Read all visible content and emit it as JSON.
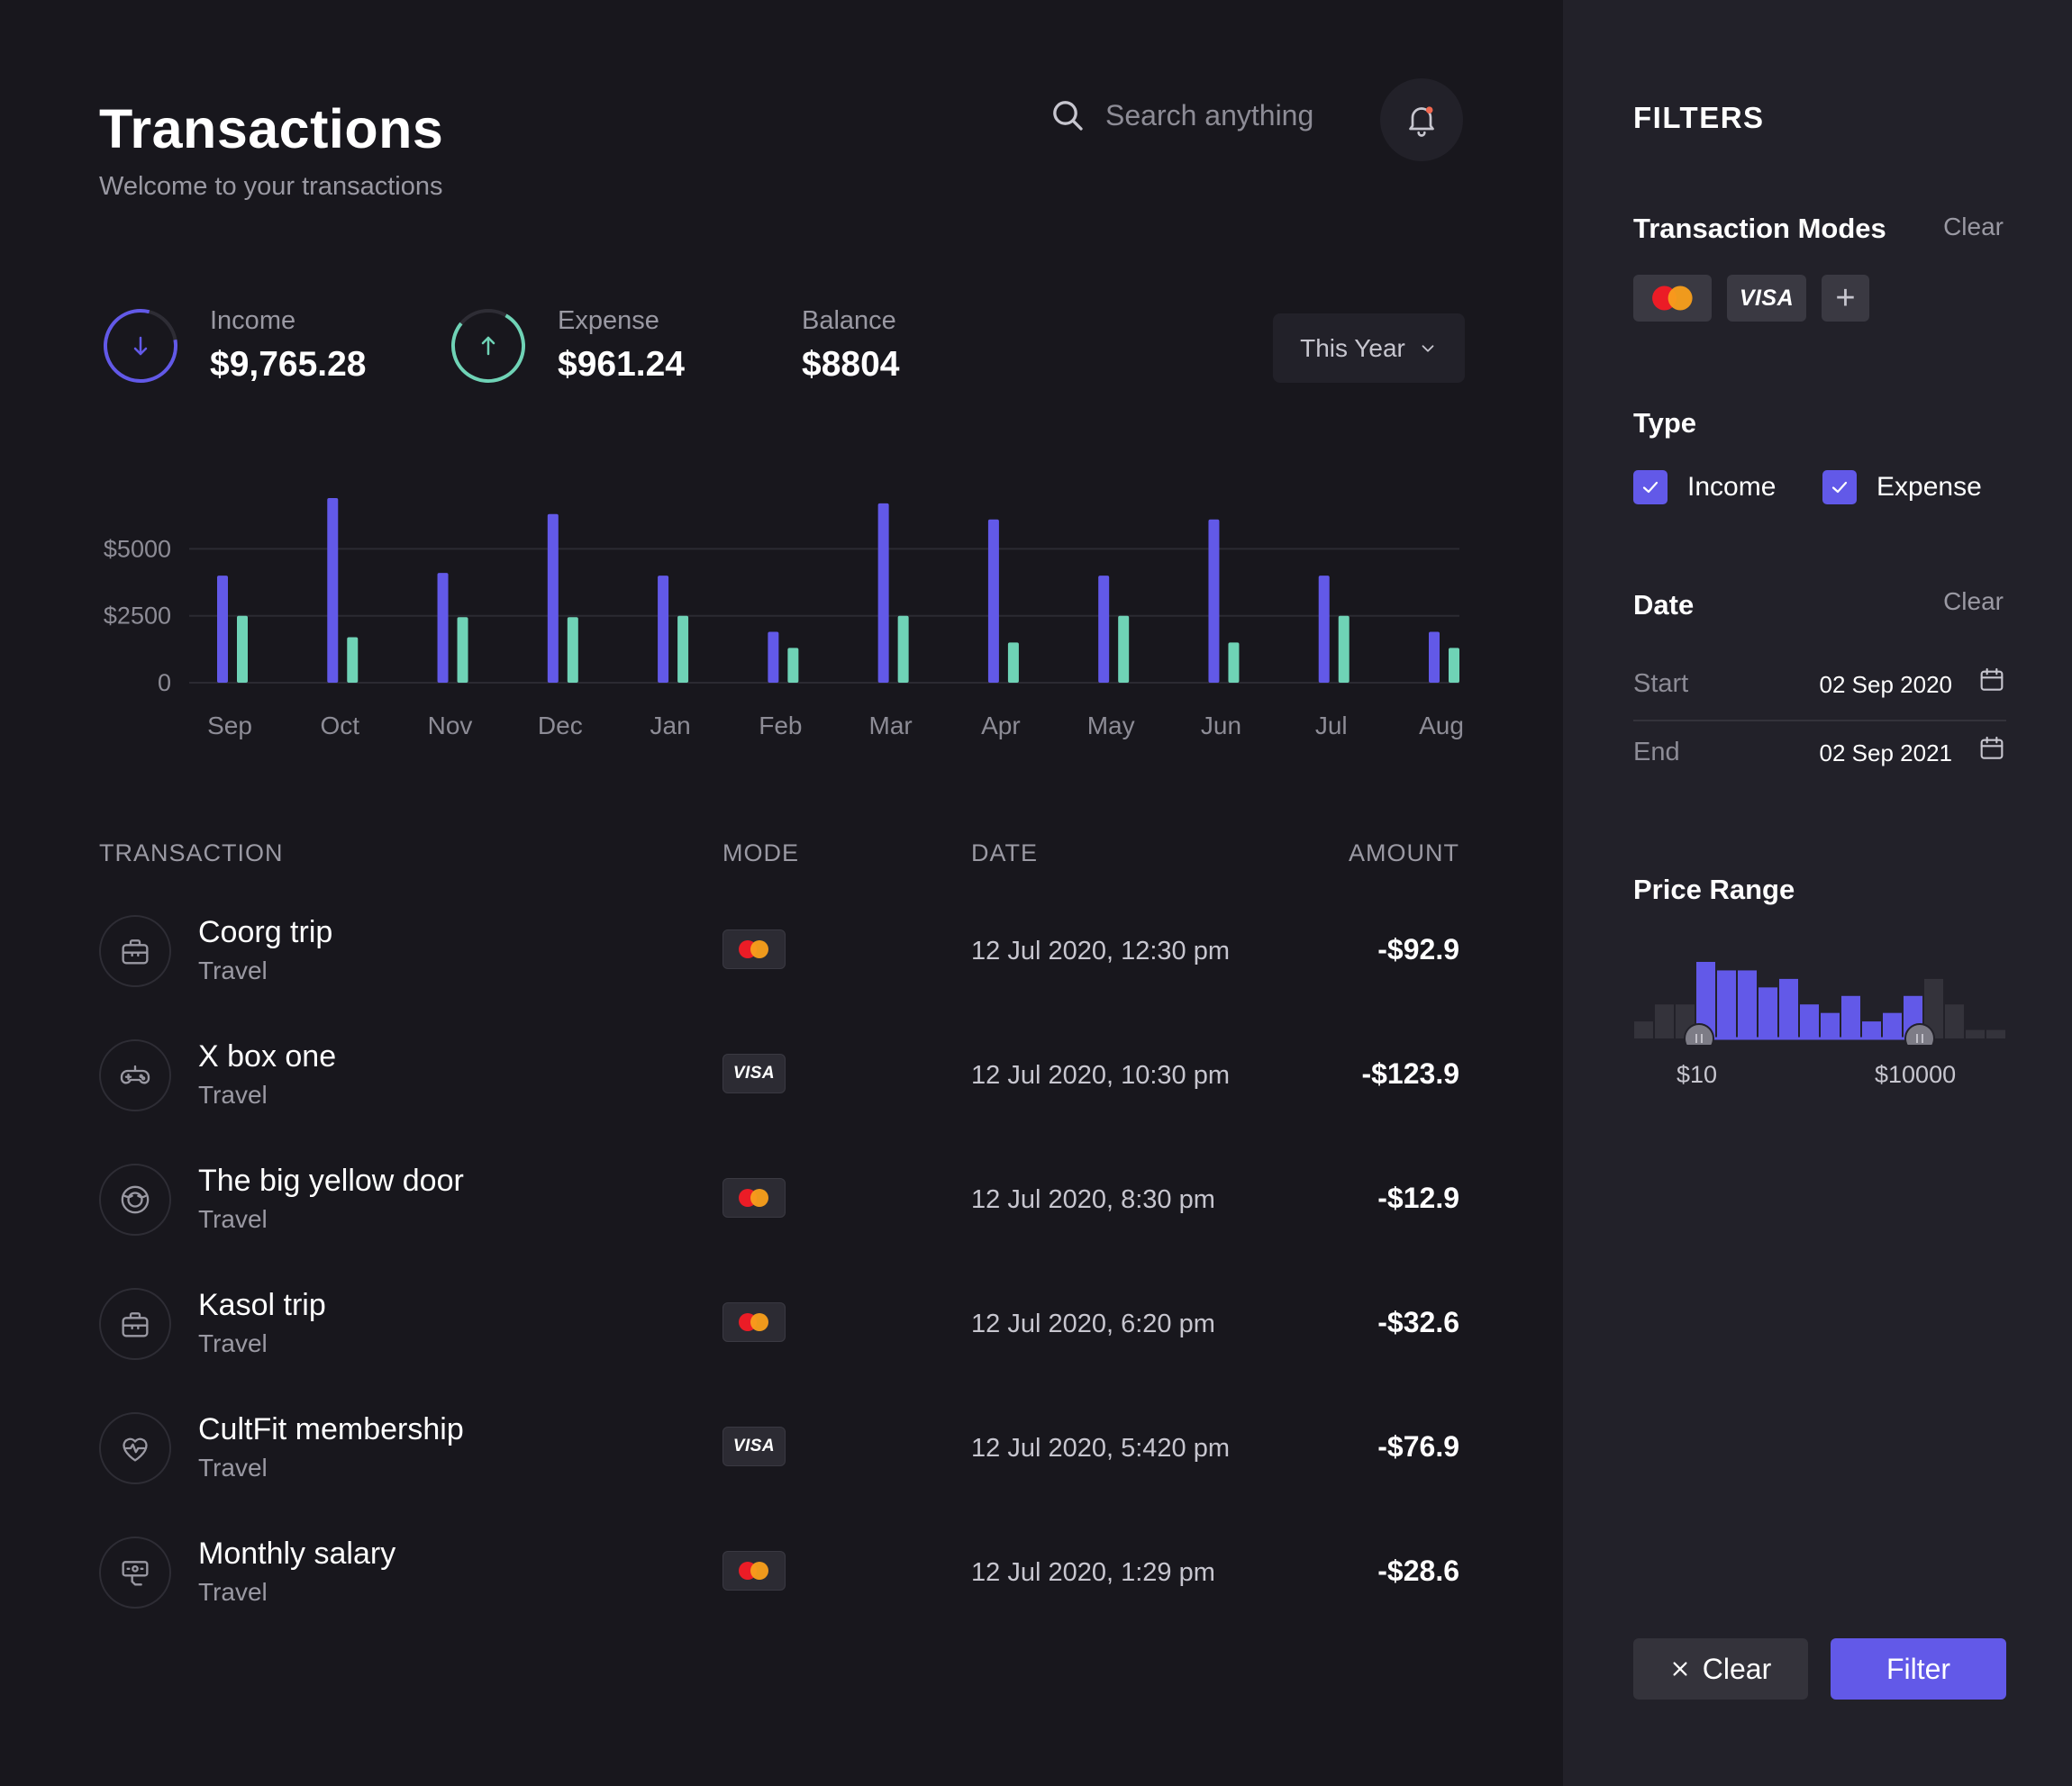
{
  "header": {
    "title": "Transactions",
    "subtitle": "Welcome to your transactions",
    "search_placeholder": "Search anything"
  },
  "stats": {
    "income": {
      "label": "Income",
      "value": "$9,765.28",
      "color": "#6259e8"
    },
    "expense": {
      "label": "Expense",
      "value": "$961.24",
      "color": "#6fd3b6"
    },
    "balance": {
      "label": "Balance",
      "value": "$8804"
    }
  },
  "period_select": {
    "selected": "This Year"
  },
  "chart_data": {
    "type": "bar",
    "categories": [
      "Sep",
      "Oct",
      "Nov",
      "Dec",
      "Jan",
      "Feb",
      "Mar",
      "Apr",
      "May",
      "Jun",
      "Jul",
      "Aug"
    ],
    "series": [
      {
        "color": "#6259e8",
        "values": [
          4000,
          6900,
          4100,
          6300,
          4000,
          1900,
          6700,
          6100,
          4000,
          6100,
          4000,
          1900
        ]
      },
      {
        "color": "#6fd3b6",
        "values": [
          2500,
          1700,
          2450,
          2450,
          2500,
          1300,
          2500,
          1500,
          2500,
          1500,
          2500,
          1300
        ]
      }
    ],
    "yticks": [
      "0",
      "$2500",
      "$5000"
    ],
    "ylim": [
      0,
      7000
    ],
    "grid": true
  },
  "table": {
    "columns": [
      "TRANSACTION",
      "MODE",
      "DATE",
      "AMOUNT"
    ],
    "rows": [
      {
        "name": "Coorg trip",
        "category": "Travel",
        "mode": "mastercard",
        "date": "12 Jul 2020, 12:30 pm",
        "amount": "-$92.9",
        "icon": "briefcase-icon"
      },
      {
        "name": "X box one",
        "category": "Travel",
        "mode": "visa",
        "date": "12 Jul 2020, 10:30 pm",
        "amount": "-$123.9",
        "icon": "gamepad-icon"
      },
      {
        "name": "The big yellow door",
        "category": "Travel",
        "mode": "mastercard",
        "date": "12 Jul 2020, 8:30 pm",
        "amount": "-$12.9",
        "icon": "food-icon"
      },
      {
        "name": "Kasol trip",
        "category": "Travel",
        "mode": "mastercard",
        "date": "12 Jul 2020, 6:20 pm",
        "amount": "-$32.6",
        "icon": "briefcase-icon"
      },
      {
        "name": "CultFit membership",
        "category": "Travel",
        "mode": "visa",
        "date": "12 Jul 2020, 5:420 pm",
        "amount": "-$76.9",
        "icon": "heart-pulse-icon"
      },
      {
        "name": "Monthly salary",
        "category": "Travel",
        "mode": "mastercard",
        "date": "12 Jul 2020, 1:29 pm",
        "amount": "-$28.6",
        "icon": "salary-icon"
      }
    ],
    "visa_text": "VISA"
  },
  "filters": {
    "title": "FILTERS",
    "modes_label": "Transaction Modes",
    "modes_clear": "Clear",
    "add_mode": "+",
    "type_label": "Type",
    "type_income": "Income",
    "type_expense": "Expense",
    "date_label": "Date",
    "date_clear": "Clear",
    "start_label": "Start",
    "start_value": "02 Sep 2020",
    "end_label": "End",
    "end_value": "02 Sep 2021",
    "price_label": "Price Range",
    "price_min": "$10",
    "price_max": "$10000",
    "histogram": [
      2,
      4,
      4,
      9,
      8,
      8,
      6,
      7,
      4,
      3,
      5,
      2,
      3,
      5,
      7,
      4,
      1,
      1
    ],
    "histogram_range": [
      3,
      13
    ],
    "clear_button": "Clear",
    "filter_button": "Filter",
    "accent": "#6259e8"
  }
}
